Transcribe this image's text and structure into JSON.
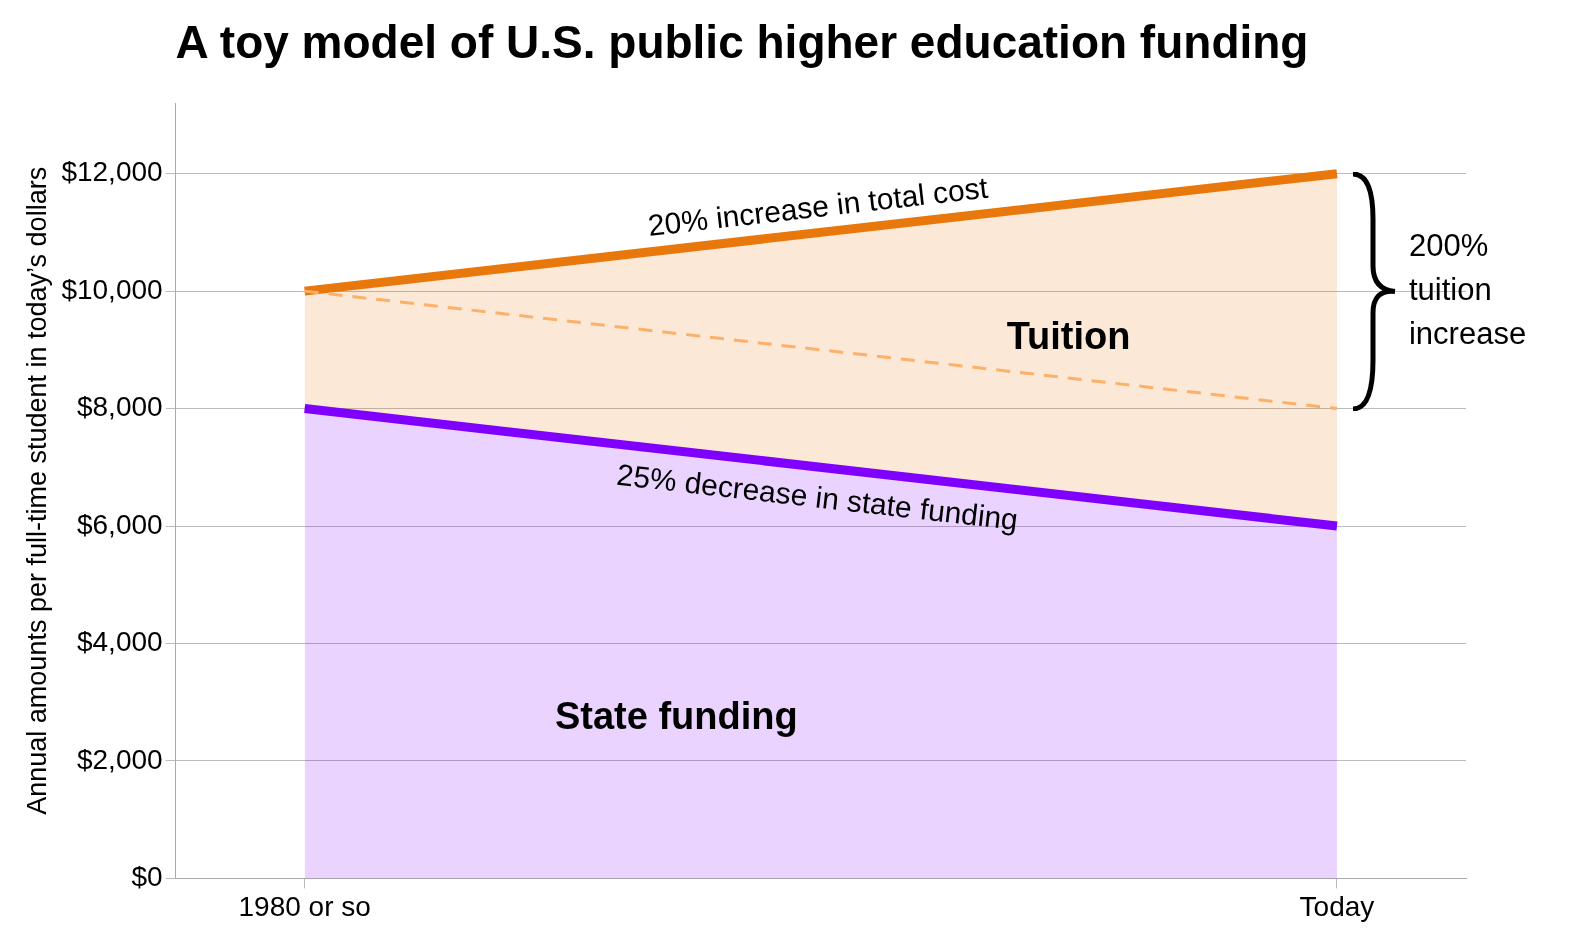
{
  "chart_data": {
    "type": "area",
    "title": "A toy model of U.S. public higher education funding",
    "ylabel": "Annual amounts per full-time student in today’s dollars",
    "categories": [
      "1980 or so",
      "Today"
    ],
    "stacked": true,
    "series": [
      {
        "name": "State funding",
        "color": "#8000ff",
        "values": [
          8000,
          6000
        ]
      },
      {
        "name": "Tuition",
        "color": "#e8780c",
        "values": [
          2000,
          6000
        ]
      },
      {
        "type": "line",
        "color": "#fdb06a",
        "values": [
          10000,
          8000
        ],
        "line_style": "dashed"
      }
    ],
    "ylim": [
      0,
      13200
    ],
    "yticks": [
      {
        "value": 0,
        "label": "$0"
      },
      {
        "value": 2000,
        "label": "$2,000"
      },
      {
        "value": 4000,
        "label": "$4,000"
      },
      {
        "value": 6000,
        "label": "$6,000"
      },
      {
        "value": 8000,
        "label": "$8,000"
      },
      {
        "value": 10000,
        "label": "$10,000"
      },
      {
        "value": 12000,
        "label": "$12,000"
      }
    ],
    "grid": "y",
    "legend": false,
    "annotations": [
      "20% increase in total cost",
      "25% decrease in state funding",
      "200% tuition increase"
    ]
  }
}
